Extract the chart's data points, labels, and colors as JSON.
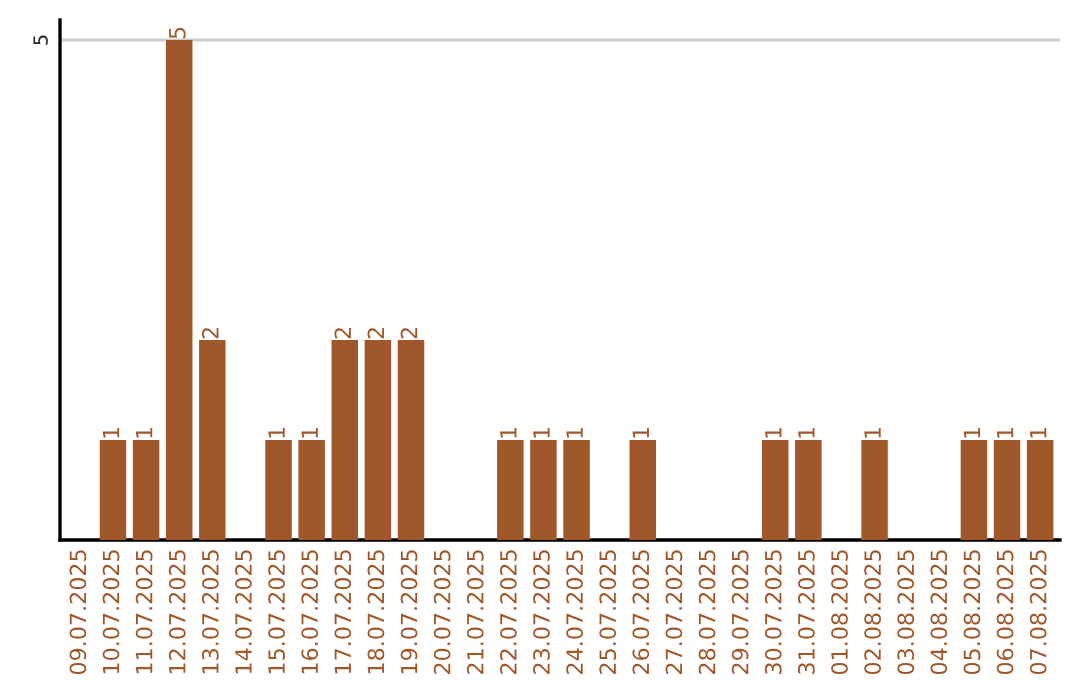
{
  "chart_data": {
    "type": "bar",
    "categories": [
      "09.07.2025",
      "10.07.2025",
      "11.07.2025",
      "12.07.2025",
      "13.07.2025",
      "14.07.2025",
      "15.07.2025",
      "16.07.2025",
      "17.07.2025",
      "18.07.2025",
      "19.07.2025",
      "20.07.2025",
      "21.07.2025",
      "22.07.2025",
      "23.07.2025",
      "24.07.2025",
      "25.07.2025",
      "26.07.2025",
      "27.07.2025",
      "28.07.2025",
      "29.07.2025",
      "30.07.2025",
      "31.07.2025",
      "01.08.2025",
      "02.08.2025",
      "03.08.2025",
      "04.08.2025",
      "05.08.2025",
      "06.08.2025",
      "07.08.2025"
    ],
    "values": [
      0,
      1,
      1,
      5,
      2,
      0,
      1,
      1,
      2,
      2,
      2,
      0,
      0,
      1,
      1,
      1,
      0,
      1,
      0,
      0,
      0,
      1,
      1,
      0,
      1,
      0,
      0,
      1,
      1,
      1
    ],
    "value_labels": [
      null,
      "1",
      "1",
      "5",
      "2",
      null,
      "1",
      "1",
      "2",
      "2",
      "2",
      null,
      null,
      "1",
      "1",
      "1",
      null,
      "1",
      null,
      null,
      null,
      "1",
      "1",
      null,
      "1",
      null,
      null,
      "1",
      "1",
      "1"
    ],
    "color": "#a0582a",
    "ylim": [
      0,
      5.2
    ],
    "yticks": [
      5
    ],
    "grid": "y"
  }
}
